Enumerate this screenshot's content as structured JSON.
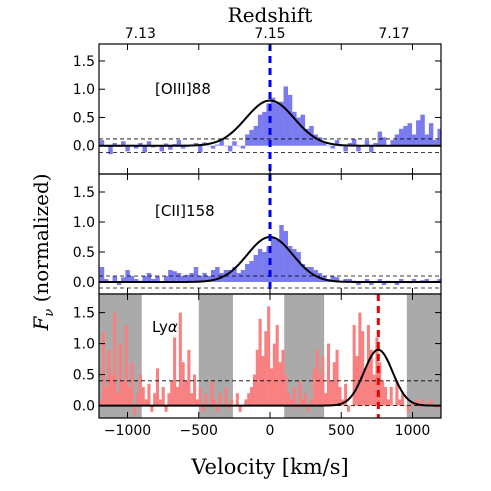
{
  "figure": {
    "top_axis_label": "Redshift",
    "x_axis_label": "Velocity [km/s]",
    "y_axis_label_main": "F",
    "y_axis_label_sub": "ν",
    "y_axis_label_rest": " (normalized)"
  },
  "chart_data": [
    {
      "type": "bar",
      "panel": "top",
      "annotation": "[OIII]88",
      "line_color": "#0000ee",
      "bar_color": "#7b7bf0",
      "xlim": [
        -1200,
        1200
      ],
      "ylim": [
        -0.5,
        1.8
      ],
      "yticks": [
        0.0,
        0.5,
        1.0,
        1.5
      ],
      "top_xticks": [
        "7.13",
        "7.15",
        "7.17"
      ],
      "noise_band": [
        -0.12,
        0.12
      ],
      "vline_velocity": 0,
      "gaussian": {
        "amplitude": 0.8,
        "center": 0,
        "sigma": 170
      },
      "spectrum": {
        "x_start": -1180,
        "x_step": 30,
        "y": [
          0.1,
          -0.02,
          -0.15,
          0.05,
          -0.02,
          0.08,
          -0.1,
          0.02,
          -0.05,
          0.05,
          -0.12,
          0.08,
          -0.03,
          0.0,
          -0.1,
          0.04,
          -0.07,
          0.03,
          0.1,
          -0.05,
          -0.02,
          0.0,
          0.05,
          -0.12,
          0.06,
          0.0,
          -0.05,
          0.02,
          0.12,
          0.0,
          -0.1,
          0.08,
          0.0,
          -0.05,
          0.2,
          0.28,
          0.35,
          0.55,
          0.6,
          0.75,
          0.85,
          0.75,
          0.78,
          1.05,
          0.9,
          0.6,
          0.5,
          0.55,
          0.3,
          0.35,
          0.2,
          0.15,
          0.05,
          0.0,
          -0.05,
          0.1,
          0.0,
          -0.1,
          0.05,
          0.12,
          -0.1,
          0.0,
          0.1,
          -0.12,
          0.05,
          0.25,
          0.15,
          0.0,
          0.1,
          0.2,
          0.3,
          0.35,
          0.4,
          0.2,
          0.45,
          0.55,
          0.2,
          0.4,
          0.1,
          0.3
        ]
      }
    },
    {
      "type": "bar",
      "panel": "middle",
      "annotation": "[CII]158",
      "line_color": "#0000ee",
      "bar_color": "#7b7bf0",
      "xlim": [
        -1200,
        1200
      ],
      "ylim": [
        -0.2,
        1.8
      ],
      "yticks": [
        0.0,
        0.5,
        1.0,
        1.5
      ],
      "noise_band": [
        -0.1,
        0.1
      ],
      "vline_velocity": 0,
      "gaussian": {
        "amplitude": 0.75,
        "center": 0,
        "sigma": 160
      },
      "spectrum": {
        "x_start": -1180,
        "x_step": 30,
        "y": [
          0.25,
          0.05,
          0.0,
          0.1,
          -0.05,
          0.08,
          0.2,
          0.1,
          0.05,
          0.02,
          0.1,
          0.15,
          0.05,
          0.1,
          0.0,
          0.1,
          0.2,
          0.18,
          0.15,
          0.1,
          0.12,
          0.15,
          0.25,
          0.1,
          0.15,
          0.1,
          0.2,
          0.25,
          0.15,
          0.2,
          0.2,
          0.25,
          0.15,
          0.2,
          0.3,
          0.35,
          0.45,
          0.55,
          0.5,
          0.6,
          0.75,
          0.7,
          0.95,
          0.85,
          0.6,
          0.55,
          0.5,
          0.3,
          0.25,
          0.25,
          0.2,
          0.15,
          0.1,
          0.05,
          0.1,
          0.08,
          0.0,
          0.05,
          0.05,
          0.02,
          -0.05,
          0.0,
          0.05,
          -0.05,
          0.0,
          0.05,
          -0.05,
          0.02,
          0.0,
          -0.05,
          0.05,
          0.0,
          -0.02,
          0.05,
          0.0,
          0.03,
          0.05,
          0.0,
          0.02,
          0.05
        ]
      }
    },
    {
      "type": "bar",
      "panel": "bottom",
      "annotation_main": "Ly",
      "annotation_greek": "α",
      "line_color": "#ee0000",
      "bar_color": "#f98080",
      "shade_color": "#aaaaaa",
      "xlim": [
        -1200,
        1200
      ],
      "ylim": [
        -0.2,
        1.8
      ],
      "xticks": [
        -1000,
        -500,
        0,
        500,
        1000
      ],
      "xtick_labels": [
        "−1000",
        "−500",
        "0",
        "500",
        "1000"
      ],
      "yticks": [
        0.0,
        0.5,
        1.0,
        1.5
      ],
      "noise_band": [
        0.0,
        0.4
      ],
      "vline_velocity": 760,
      "gaussian": {
        "amplitude": 0.9,
        "center": 760,
        "sigma": 100
      },
      "shaded_regions": [
        [
          -1200,
          -900
        ],
        [
          -500,
          -260
        ],
        [
          100,
          380
        ],
        [
          960,
          1200
        ]
      ],
      "spectrum": {
        "x_start": -1190,
        "x_step": 20,
        "y": [
          0.1,
          1.2,
          0.3,
          0.9,
          0.5,
          1.5,
          0.2,
          1.0,
          0.4,
          1.3,
          0.3,
          0.7,
          -0.15,
          0.2,
          0.5,
          0.3,
          0.1,
          0.35,
          -0.1,
          0.2,
          0.6,
          0.1,
          0.3,
          -0.1,
          0.2,
          0.4,
          1.1,
          0.3,
          1.5,
          0.7,
          0.4,
          0.9,
          0.2,
          0.5,
          0.1,
          0.3,
          -0.1,
          0.2,
          0.0,
          0.4,
          0.1,
          -0.1,
          0.2,
          0.0,
          0.3,
          -0.05,
          0.1,
          0.0,
          0.2,
          -0.1,
          0.0,
          0.1,
          0.2,
          0.3,
          0.5,
          0.9,
          1.4,
          0.8,
          1.2,
          1.6,
          0.6,
          1.0,
          1.3,
          0.7,
          0.9,
          0.5,
          0.2,
          0.1,
          0.3,
          -0.05,
          0.4,
          0.1,
          0.2,
          -0.1,
          0.1,
          0.6,
          0.9,
          0.5,
          0.8,
          0.2,
          1.0,
          0.4,
          0.7,
          0.9,
          0.3,
          0.1,
          0.35,
          -0.1,
          0.0,
          1.3,
          0.8,
          1.5,
          1.2,
          0.6,
          1.3,
          0.9,
          0.5,
          1.1,
          0.7,
          0.4,
          0.3,
          0.1,
          0.3,
          0.0,
          0.4,
          0.1,
          0.2,
          0.0,
          -0.1,
          0.05,
          0.0,
          0.1,
          -0.05,
          0.1,
          0.0,
          0.05,
          0.1,
          0.0,
          -0.05,
          0.0
        ]
      }
    }
  ]
}
